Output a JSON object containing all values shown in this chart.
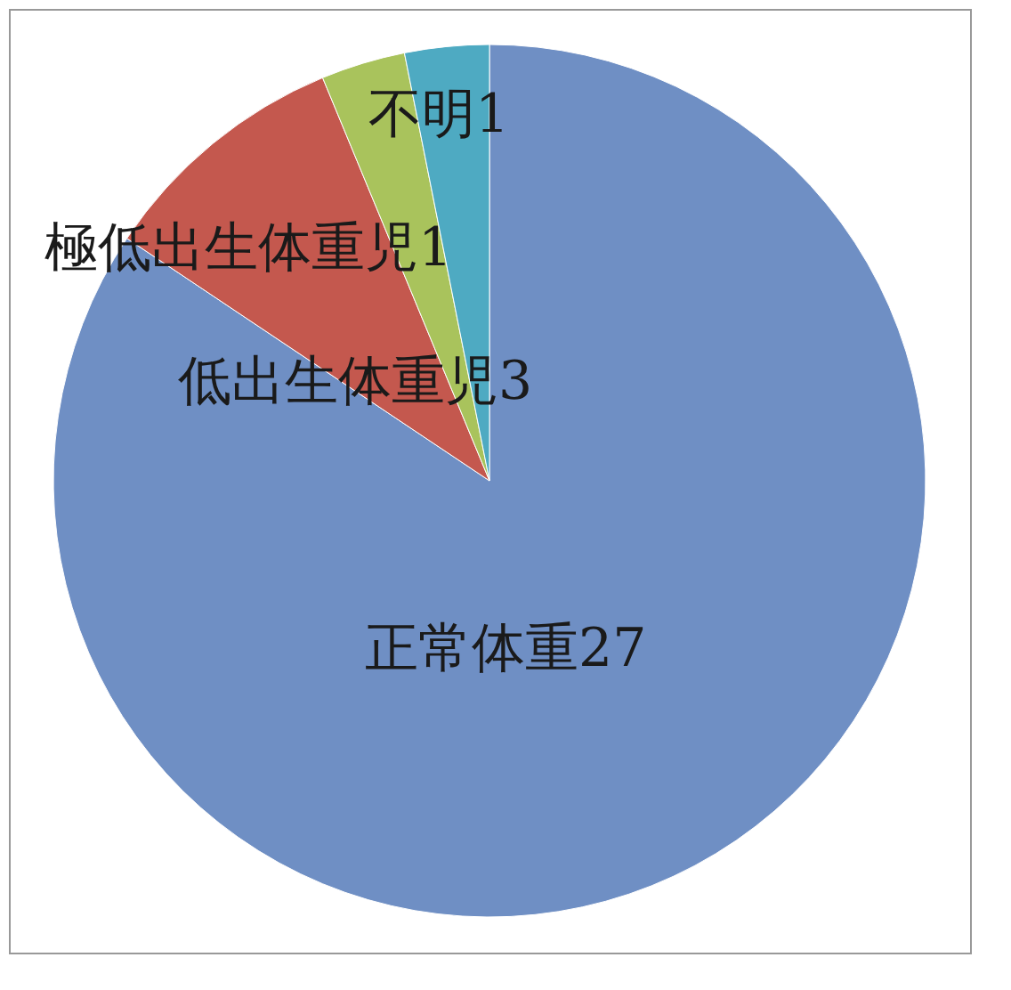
{
  "chart_data": {
    "type": "pie",
    "categories": [
      "正常体重",
      "低出生体重児",
      "極低出生体重児",
      "不明"
    ],
    "values": [
      27,
      3,
      1,
      1
    ],
    "colors": [
      "#6f8fc4",
      "#c4584e",
      "#a9c35c",
      "#4eaac2"
    ],
    "data_labels": true,
    "legend": false
  }
}
